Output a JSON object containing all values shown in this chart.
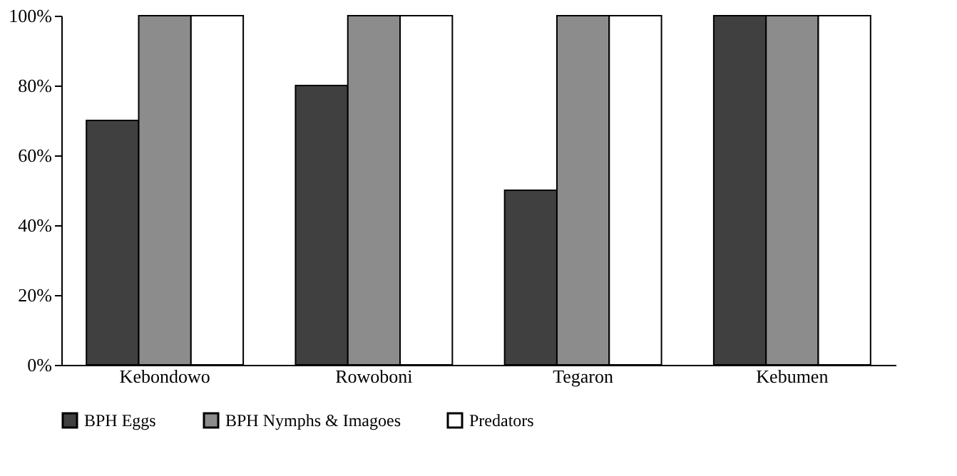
{
  "chart_data": {
    "type": "bar",
    "categories": [
      "Kebondowo",
      "Rowoboni",
      "Tegaron",
      "Kebumen"
    ],
    "series": [
      {
        "name": "BPH Eggs",
        "color": "#404040",
        "values": [
          70,
          80,
          50,
          100
        ]
      },
      {
        "name": "BPH Nymphs & Imagoes",
        "color": "#8c8c8c",
        "values": [
          100,
          100,
          100,
          100
        ]
      },
      {
        "name": "Predators",
        "color": "#ffffff",
        "values": [
          100,
          100,
          100,
          100
        ]
      }
    ],
    "ylim": [
      0,
      100
    ],
    "yticks": [
      {
        "value": 0,
        "label": "0%"
      },
      {
        "value": 20,
        "label": "20%"
      },
      {
        "value": 40,
        "label": "40%"
      },
      {
        "value": 60,
        "label": "60%"
      },
      {
        "value": 80,
        "label": "80%"
      },
      {
        "value": 100,
        "label": "100%"
      }
    ],
    "grid": false,
    "legend": "bottom"
  }
}
